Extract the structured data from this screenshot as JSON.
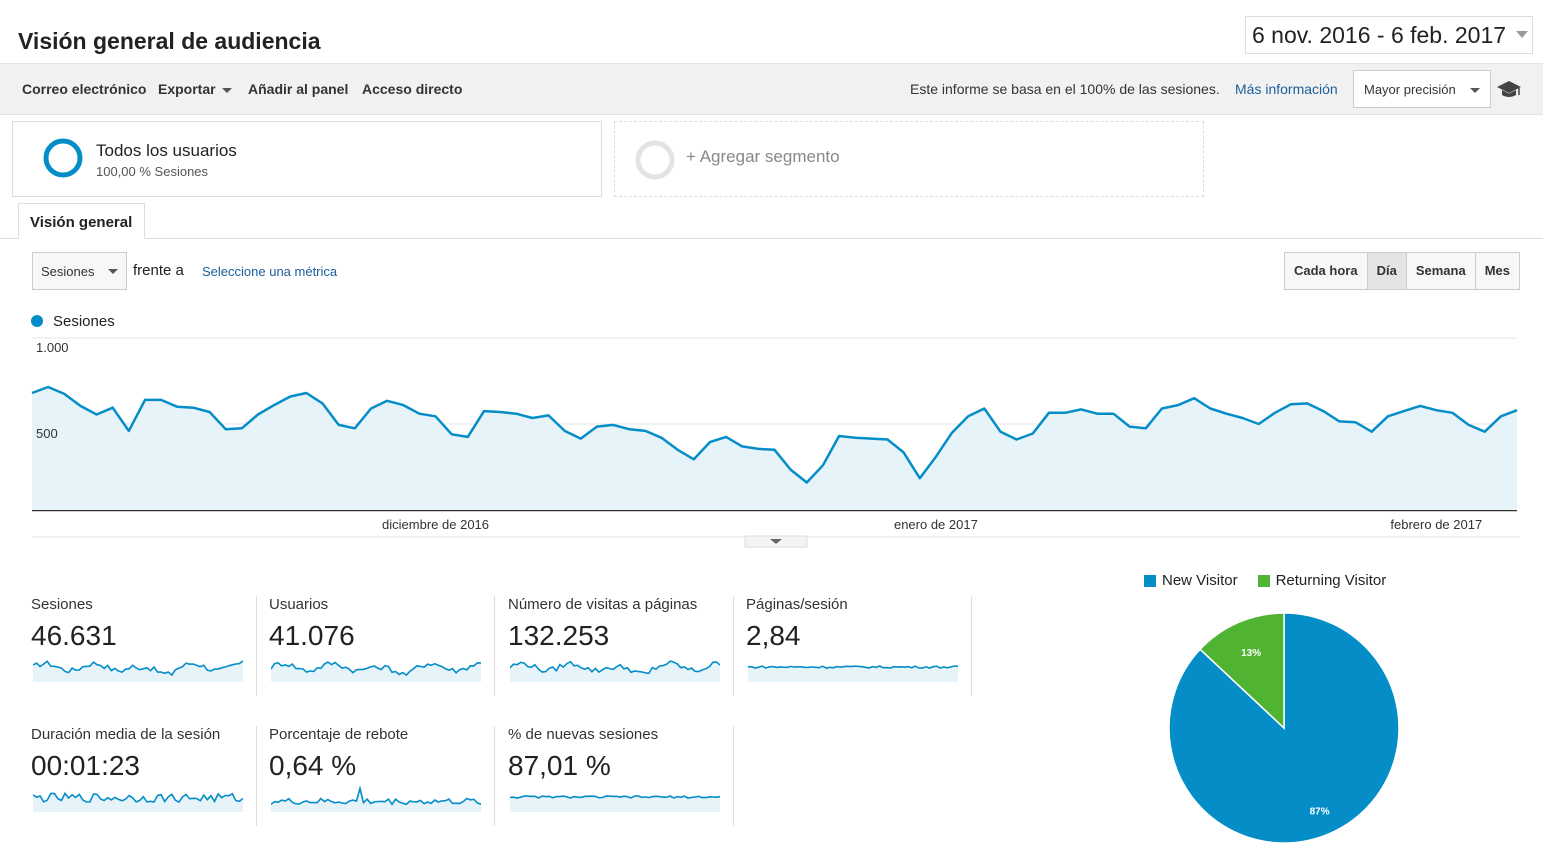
{
  "header": {
    "title": "Visión general de audiencia",
    "date_range": "6 nov. 2016 - 6 feb. 2017"
  },
  "toolbar": {
    "email": "Correo electrónico",
    "export": "Exportar",
    "add_dashboard": "Añadir al panel",
    "shortcut": "Acceso directo",
    "sampling_text": "Este informe se basa en el 100% de las sesiones.",
    "more_info": "Más información",
    "precision": "Mayor precisión",
    "icon": "graduation-cap-icon"
  },
  "segments": {
    "active": {
      "name": "Todos los usuarios",
      "detail": "100,00 % Sesiones"
    },
    "add": "+ Agregar segmento"
  },
  "tabs": {
    "overview": "Visión general"
  },
  "metric_controls": {
    "metric": "Sesiones",
    "versus": "frente a",
    "select_metric": "Seleccione una métrica"
  },
  "granularity": [
    {
      "label": "Cada hora",
      "active": false
    },
    {
      "label": "Día",
      "active": true
    },
    {
      "label": "Semana",
      "active": false
    },
    {
      "label": "Mes",
      "active": false
    }
  ],
  "colors": {
    "primary": "#058dc7",
    "area": "#e6f3f9",
    "new": "#058dc7",
    "returning": "#50b432"
  },
  "chart_data": [
    {
      "type": "area",
      "series": [
        {
          "name": "Sesiones",
          "values": [
            680,
            715,
            675,
            605,
            555,
            595,
            460,
            640,
            640,
            600,
            595,
            570,
            470,
            475,
            555,
            610,
            660,
            680,
            620,
            495,
            475,
            590,
            635,
            610,
            560,
            545,
            440,
            425,
            575,
            570,
            560,
            535,
            550,
            460,
            415,
            485,
            495,
            470,
            460,
            420,
            350,
            295,
            395,
            425,
            370,
            355,
            350,
            235,
            160,
            260,
            430,
            420,
            415,
            410,
            335,
            185,
            310,
            450,
            545,
            590,
            455,
            410,
            445,
            565,
            565,
            585,
            560,
            560,
            485,
            475,
            590,
            610,
            650,
            590,
            560,
            535,
            500,
            565,
            615,
            620,
            575,
            515,
            510,
            455,
            545,
            575,
            605,
            580,
            565,
            495,
            455,
            545,
            580
          ]
        }
      ],
      "y_ticks": [
        "1.000",
        "500"
      ],
      "ylim": [
        0,
        1000
      ],
      "x_labels": [
        "diciembre de 2016",
        "enero de 2017",
        "febrero de 2017"
      ]
    },
    {
      "type": "pie",
      "series": [
        {
          "name": "New Visitor",
          "value": 87,
          "label": "87%"
        },
        {
          "name": "Returning Visitor",
          "value": 13,
          "label": "13%"
        }
      ]
    }
  ],
  "scorecards": [
    {
      "label": "Sesiones",
      "value": "46.631",
      "spark": "volatile"
    },
    {
      "label": "Usuarios",
      "value": "41.076",
      "spark": "volatile"
    },
    {
      "label": "Número de visitas a páginas",
      "value": "132.253",
      "spark": "volatile"
    },
    {
      "label": "Páginas/sesión",
      "value": "2,84",
      "spark": "flat"
    },
    {
      "label": "Duración media de la sesión",
      "value": "00:01:23",
      "spark": "noisy"
    },
    {
      "label": "Porcentaje de rebote",
      "value": "0,64 %",
      "spark": "spiky"
    },
    {
      "label": "% de nuevas sesiones",
      "value": "87,01 %",
      "spark": "flat"
    }
  ]
}
